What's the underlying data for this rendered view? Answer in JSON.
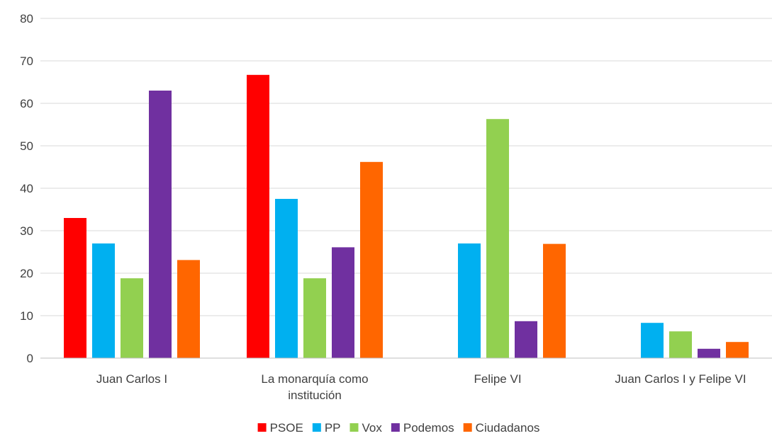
{
  "chart_data": {
    "type": "bar",
    "categories": [
      [
        "Juan Carlos I"
      ],
      [
        "La monarquía como",
        "institución"
      ],
      [
        "Felipe VI"
      ],
      [
        "Juan Carlos I y Felipe VI"
      ]
    ],
    "series": [
      {
        "name": "PSOE",
        "color": "#ff0000",
        "values": [
          33,
          66.7,
          0,
          0
        ]
      },
      {
        "name": "PP",
        "color": "#00b0f0",
        "values": [
          27,
          37.5,
          27,
          8.3
        ]
      },
      {
        "name": "Vox",
        "color": "#92d050",
        "values": [
          18.8,
          18.8,
          56.3,
          6.3
        ]
      },
      {
        "name": "Podemos",
        "color": "#7030a0",
        "values": [
          63,
          26.1,
          8.7,
          2.2
        ]
      },
      {
        "name": "Ciudadanos",
        "color": "#ff6600",
        "values": [
          23.1,
          46.2,
          26.9,
          3.8
        ]
      }
    ],
    "ylim": [
      0,
      80
    ],
    "yticks": [
      0,
      10,
      20,
      30,
      40,
      50,
      60,
      70,
      80
    ],
    "grid": true,
    "legend_position": "bottom"
  }
}
